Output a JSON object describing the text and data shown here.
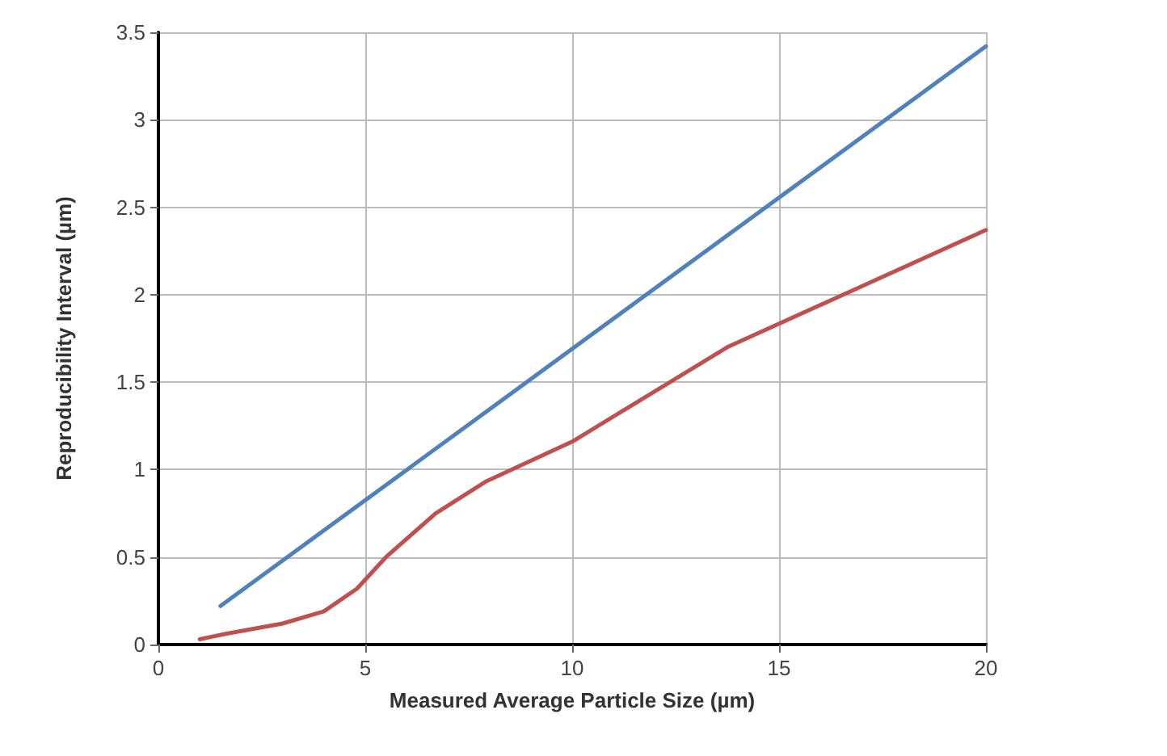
{
  "chart_data": {
    "type": "line",
    "xlabel": "Measured Average Particle Size (µm)",
    "ylabel": "Reproducibility Interval (µm)",
    "xlim": [
      0,
      20
    ],
    "xticks": [
      0,
      5,
      10,
      15,
      20
    ],
    "ylim": [
      0,
      3.5
    ],
    "yticks": [
      0,
      0.5,
      1,
      1.5,
      2,
      2.5,
      3,
      3.5
    ],
    "grid": true,
    "marker": "none",
    "line_style": "solid",
    "series": [
      {
        "color": "#4f81bd",
        "x": [
          1.5,
          20
        ],
        "values": [
          0.22,
          3.42
        ]
      },
      {
        "color": "#c0504d",
        "x": [
          1.0,
          1.6,
          3.0,
          4.0,
          4.8,
          5.5,
          6.7,
          7.9,
          10,
          13.75,
          20
        ],
        "values": [
          0.03,
          0.06,
          0.12,
          0.19,
          0.32,
          0.5,
          0.75,
          0.93,
          1.16,
          1.7,
          2.37
        ]
      }
    ]
  }
}
